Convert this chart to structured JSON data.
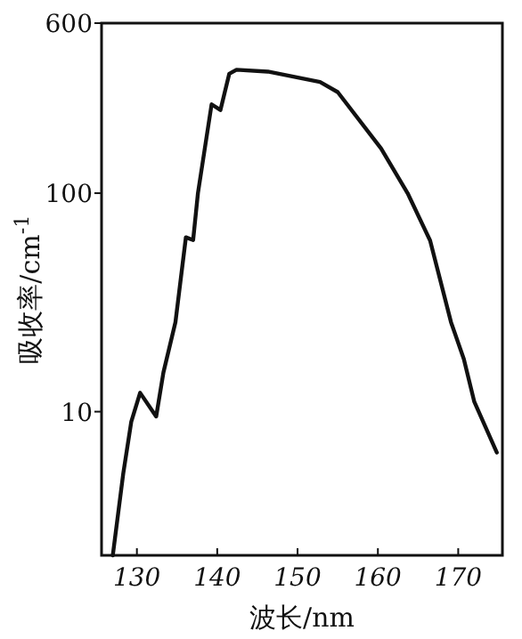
{
  "chart_data": {
    "type": "line",
    "xlabel": "波长/nm",
    "ylabel": "吸收率/cm$^{-1}$",
    "log": "y",
    "xlim": [
      125.6,
      175.5
    ],
    "ylim": [
      2.2,
      600
    ],
    "xticks": [
      130,
      140,
      150,
      160,
      170
    ],
    "yticks": [
      10,
      100,
      600
    ],
    "grid": false,
    "marker": "none",
    "line_style": "solid",
    "series": [
      {
        "color": "#111111",
        "x": [
          127.0,
          128.3,
          129.3,
          130.4,
          132.4,
          133.3,
          134.8,
          136.1,
          137.0,
          137.6,
          139.3,
          140.4,
          141.5,
          142.4,
          146.3,
          152.8,
          155.0,
          160.4,
          163.7,
          166.5,
          169.1,
          170.7,
          172.0,
          174.8
        ],
        "values": [
          2.2,
          5.2,
          9.0,
          12.2,
          9.5,
          15.1,
          25.7,
          62.8,
          61,
          100,
          255,
          240,
          352,
          367,
          360,
          323,
          290,
          160,
          100,
          60.7,
          25.7,
          17.4,
          11.1,
          6.5
        ]
      }
    ]
  }
}
